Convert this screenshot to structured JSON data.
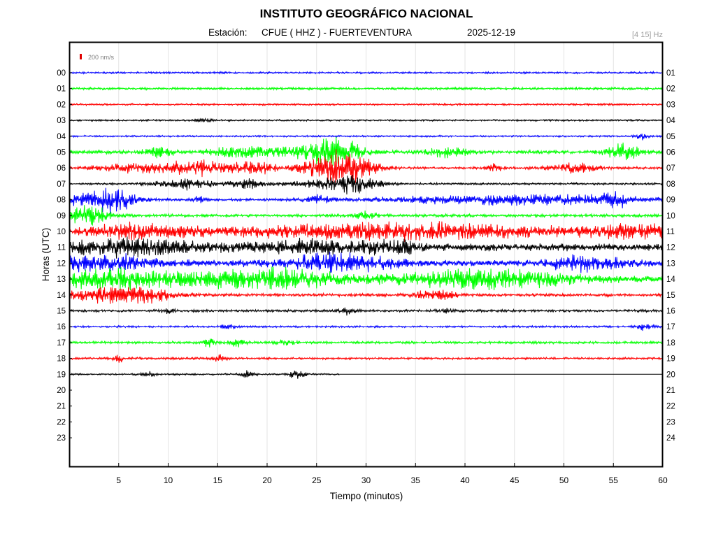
{
  "chart_data": {
    "type": "seismogram",
    "title": "INSTITUTO GEOGRÁFICO NACIONAL",
    "station_label": "Estación:",
    "station": "CFUE ( HHZ ) - FUERTEVENTURA",
    "date": "2025-12-19",
    "filter": "[4 15] Hz",
    "scale_label": "200 nm/s",
    "xlabel": "Tiempo (minutos)",
    "ylabel": "Horas (UTC)",
    "xlim": [
      0,
      60
    ],
    "x_ticks": [
      5,
      10,
      15,
      20,
      25,
      30,
      35,
      40,
      45,
      50,
      55,
      60
    ],
    "left_hours": [
      "00",
      "01",
      "02",
      "03",
      "04",
      "05",
      "06",
      "07",
      "08",
      "09",
      "10",
      "11",
      "12",
      "13",
      "14",
      "15",
      "16",
      "17",
      "18",
      "19",
      "20",
      "21",
      "22",
      "23"
    ],
    "right_hours": [
      "01",
      "02",
      "03",
      "04",
      "05",
      "06",
      "07",
      "08",
      "09",
      "10",
      "11",
      "12",
      "13",
      "14",
      "15",
      "16",
      "17",
      "18",
      "19",
      "20",
      "21",
      "22",
      "23",
      "24"
    ],
    "trace_colors": [
      "#0000ff",
      "#00ff00",
      "#ff0000",
      "#000000"
    ],
    "traces_recorded_hours": 20,
    "last_trace_end_minute": 27.3,
    "activity": [
      {
        "hour": 0,
        "base": 1.6,
        "bursts": []
      },
      {
        "hour": 1,
        "base": 2.0,
        "bursts": []
      },
      {
        "hour": 2,
        "base": 1.6,
        "bursts": []
      },
      {
        "hour": 3,
        "base": 1.4,
        "bursts": [
          [
            13.5,
            0.6,
            3.5
          ]
        ]
      },
      {
        "hour": 4,
        "base": 1.4,
        "bursts": [
          [
            58,
            0.5,
            5
          ]
        ]
      },
      {
        "hour": 5,
        "base": 3.0,
        "bursts": [
          [
            9,
            1.0,
            8
          ],
          [
            17,
            2.0,
            8
          ],
          [
            23,
            2.5,
            9
          ],
          [
            27,
            1.8,
            22
          ],
          [
            38,
            1.5,
            7
          ],
          [
            56,
            1.2,
            13
          ]
        ]
      },
      {
        "hour": 6,
        "base": 2.0,
        "bursts": [
          [
            4,
            1.5,
            5
          ],
          [
            8,
            2.0,
            7
          ],
          [
            14,
            3.0,
            11
          ],
          [
            19,
            1.2,
            8
          ],
          [
            25,
            2.0,
            8
          ],
          [
            28,
            2.0,
            25
          ],
          [
            43,
            0.6,
            6
          ],
          [
            51,
            1.8,
            7
          ]
        ]
      },
      {
        "hour": 7,
        "base": 1.8,
        "bursts": [
          [
            12,
            2.0,
            9
          ],
          [
            18,
            1.0,
            8
          ],
          [
            25,
            3.0,
            4
          ],
          [
            28.5,
            1.8,
            14
          ]
        ]
      },
      {
        "hour": 8,
        "base": 2.0,
        "bursts": [
          [
            3,
            2.5,
            13
          ],
          [
            5,
            1.0,
            12
          ],
          [
            13,
            0.5,
            5
          ],
          [
            25,
            1.2,
            6
          ],
          [
            45,
            9.0,
            8
          ],
          [
            55,
            1.0,
            11
          ]
        ]
      },
      {
        "hour": 9,
        "base": 2.5,
        "bursts": [
          [
            2,
            1.5,
            16
          ],
          [
            30,
            0.8,
            6
          ]
        ]
      },
      {
        "hour": 10,
        "base": 3.5,
        "bursts": [
          [
            7,
            4.0,
            10
          ],
          [
            33,
            12.0,
            13
          ],
          [
            58,
            4.0,
            9
          ]
        ]
      },
      {
        "hour": 11,
        "base": 6.0,
        "bursts": [
          [
            5,
            6.0,
            11
          ],
          [
            24,
            4.0,
            9
          ],
          [
            33,
            2.0,
            8
          ]
        ]
      },
      {
        "hour": 12,
        "base": 5.0,
        "bursts": [
          [
            3,
            4.0,
            12
          ],
          [
            27,
            4.0,
            13
          ],
          [
            52,
            2.5,
            11
          ]
        ]
      },
      {
        "hour": 13,
        "base": 5.0,
        "bursts": [
          [
            5,
            5.0,
            14
          ],
          [
            20,
            5.0,
            15
          ],
          [
            42,
            6.0,
            14
          ]
        ]
      },
      {
        "hour": 14,
        "base": 2.5,
        "bursts": [
          [
            3,
            2.0,
            11
          ],
          [
            7.5,
            2.0,
            12
          ],
          [
            37,
            1.5,
            8
          ]
        ]
      },
      {
        "hour": 15,
        "base": 2.0,
        "bursts": [
          [
            10,
            0.5,
            4
          ],
          [
            28,
            0.6,
            5
          ],
          [
            38,
            0.5,
            5
          ]
        ]
      },
      {
        "hour": 16,
        "base": 1.6,
        "bursts": [
          [
            16,
            0.5,
            4
          ],
          [
            58,
            0.6,
            5
          ]
        ]
      },
      {
        "hour": 17,
        "base": 2.0,
        "bursts": [
          [
            14,
            0.5,
            6
          ],
          [
            17,
            0.6,
            6
          ],
          [
            22,
            0.6,
            5
          ]
        ]
      },
      {
        "hour": 18,
        "base": 1.8,
        "bursts": [
          [
            5,
            0.5,
            5
          ],
          [
            15,
            0.5,
            5
          ]
        ]
      },
      {
        "hour": 19,
        "base": 1.5,
        "bursts": [
          [
            8,
            0.4,
            6
          ],
          [
            18,
            0.5,
            6
          ],
          [
            23,
            0.6,
            6
          ]
        ]
      }
    ]
  }
}
